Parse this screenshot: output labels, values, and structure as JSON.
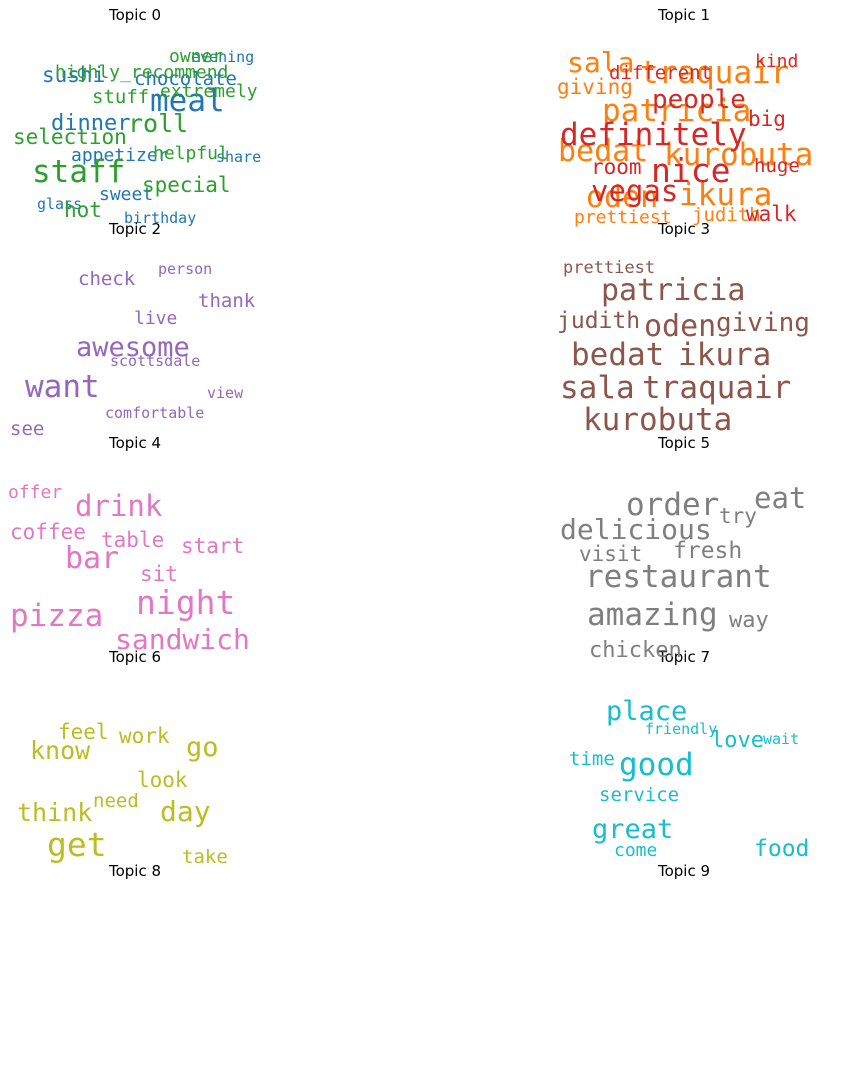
{
  "chart_data": {
    "type": "wordcloud",
    "topics": [
      {
        "title": "Topic 0",
        "color": "#1f77b4",
        "words": [
          "meal",
          "dinner",
          "sushi",
          "chocolate",
          "evening",
          "appetizer",
          "share",
          "sweet",
          "glass",
          "birthday"
        ]
      },
      {
        "title": "Topic 1",
        "color": "#ff7f0e",
        "words": [
          "sala",
          "traquair",
          "giving",
          "patricia",
          "bedat",
          "kurobuta",
          "oden",
          "ikura",
          "prettiest",
          "judith"
        ]
      },
      {
        "title": "Topic 2",
        "color": "#2ca02c",
        "words": [
          "owner",
          "highly_recommend",
          "stuff",
          "extremely",
          "roll",
          "selection",
          "helpful",
          "staff",
          "special",
          "hot"
        ]
      },
      {
        "title": "Topic 3",
        "color": "#d62728",
        "words": [
          "different",
          "kind",
          "people",
          "big",
          "definitely",
          "room",
          "nice",
          "huge",
          "vegas",
          "walk"
        ]
      },
      {
        "title": "Topic 4",
        "color": "#9467bd",
        "words": [
          "person",
          "check",
          "thank",
          "live",
          "awesome",
          "want",
          "scottsdale",
          "view",
          "comfortable",
          "see"
        ]
      },
      {
        "title": "Topic 5",
        "color": "#8c564b",
        "words": [
          "prettiest",
          "patricia",
          "judith",
          "oden",
          "giving",
          "bedat",
          "ikura",
          "sala",
          "traquair",
          "kurobuta"
        ]
      },
      {
        "title": "Topic 6",
        "color": "#e377c2",
        "words": [
          "offer",
          "drink",
          "coffee",
          "table",
          "start",
          "bar",
          "sit",
          "night",
          "pizza",
          "sandwich"
        ]
      },
      {
        "title": "Topic 7",
        "color": "#7f7f7f",
        "words": [
          "order",
          "eat",
          "delicious",
          "try",
          "visit",
          "fresh",
          "restaurant",
          "amazing",
          "way",
          "chicken"
        ]
      },
      {
        "title": "Topic 8",
        "color": "#bcbd22",
        "words": [
          "feel",
          "work",
          "know",
          "go",
          "look",
          "need",
          "think",
          "day",
          "get",
          "take"
        ]
      },
      {
        "title": "Topic 9",
        "color": "#17becf",
        "words": [
          "place",
          "friendly",
          "love",
          "wait",
          "time",
          "good",
          "service",
          "great",
          "come",
          "food"
        ]
      }
    ]
  }
}
